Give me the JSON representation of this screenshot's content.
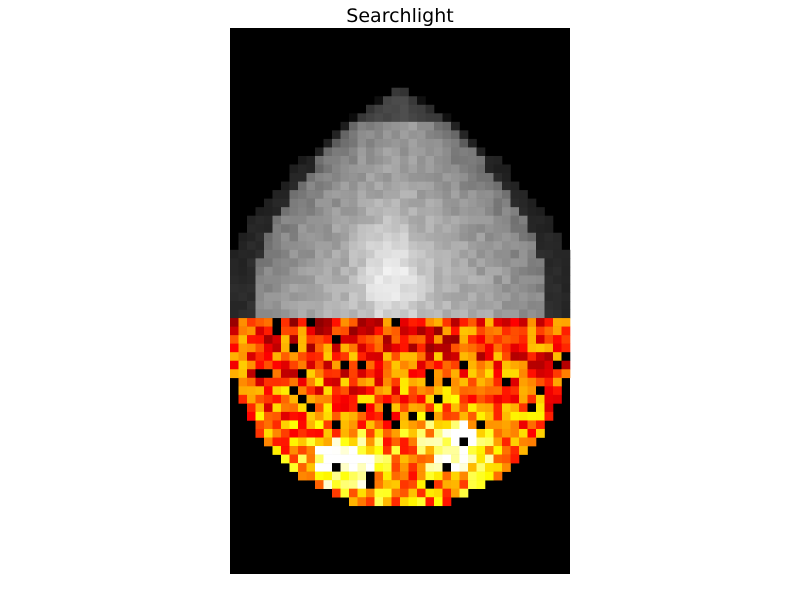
{
  "title": "Searchlight"
}
